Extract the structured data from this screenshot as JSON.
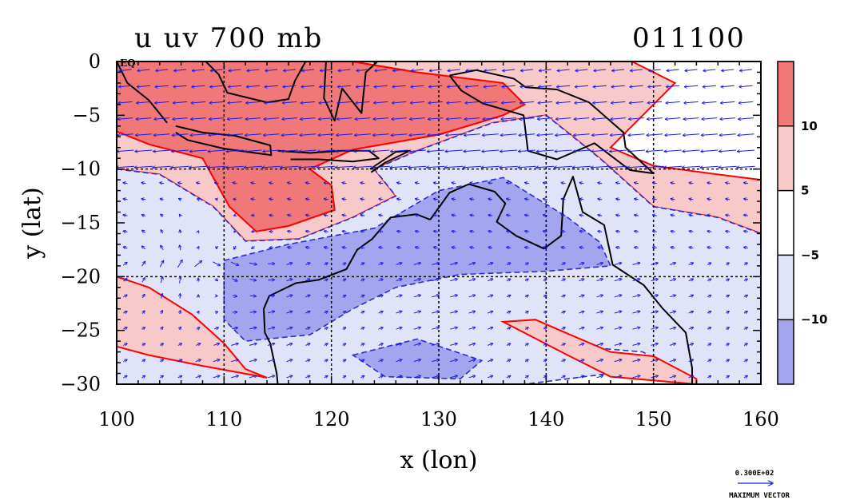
{
  "chart_data": {
    "type": "contour",
    "title": "u uv 700 mb",
    "date_label": "011100",
    "xlabel": "x (lon)",
    "ylabel": "y (lat)",
    "xlim": [
      100,
      160
    ],
    "ylim": [
      -30,
      0
    ],
    "x_ticks": [
      "100",
      "110",
      "120",
      "130",
      "140",
      "150",
      "160"
    ],
    "y_ticks": [
      "0",
      "−5",
      "−10",
      "−15",
      "−20",
      "−25",
      "−30"
    ],
    "eq_label": "EQ",
    "colorbar": {
      "levels": [
        "10",
        "5",
        "−5",
        "−10"
      ],
      "colors": [
        "#f07878",
        "#f7c9c9",
        "#ffffff",
        "#e1e3f8",
        "#a3a6ee"
      ]
    },
    "vector_legend": {
      "value": "0.300E+02",
      "label": "MAXIMUM VECTOR"
    },
    "colors": {
      "strong_positive": "#f07878",
      "weak_positive": "#f7c9c9",
      "weak_negative": "#e1e3f8",
      "strong_negative": "#a3a6ee",
      "positive_contour": "#ff0000",
      "negative_contour": "#2b2bd6",
      "vectors": "#1a1ae6",
      "coastline": "#000000"
    },
    "regions": [
      {
        "level": "strong_positive",
        "points": [
          [
            100,
            0
          ],
          [
            122,
            0
          ],
          [
            128,
            -1
          ],
          [
            136,
            -2
          ],
          [
            138,
            -4
          ],
          [
            136,
            -5
          ],
          [
            130,
            -6.8
          ],
          [
            122,
            -8.2
          ],
          [
            118,
            -10
          ],
          [
            120,
            -11.5
          ],
          [
            120.3,
            -13.8
          ],
          [
            116,
            -15.3
          ],
          [
            113,
            -15.8
          ],
          [
            110.5,
            -13.5
          ],
          [
            108,
            -9
          ],
          [
            103,
            -7.7
          ],
          [
            100,
            -6.5
          ]
        ]
      },
      {
        "level": "weak_positive",
        "points": [
          [
            100,
            -6.5
          ],
          [
            103,
            -7.7
          ],
          [
            108,
            -9
          ],
          [
            110.5,
            -13.5
          ],
          [
            113,
            -15.8
          ],
          [
            116,
            -15.3
          ],
          [
            120.3,
            -13.8
          ],
          [
            120,
            -11.5
          ],
          [
            118,
            -10
          ],
          [
            122,
            -8.2
          ],
          [
            130,
            -6.8
          ],
          [
            136,
            -5
          ],
          [
            138,
            -4
          ],
          [
            136,
            -2
          ],
          [
            128,
            -1
          ],
          [
            122,
            0
          ],
          [
            148,
            0
          ],
          [
            152,
            -2
          ],
          [
            149,
            -5
          ],
          [
            146,
            -8
          ],
          [
            150,
            -9.7
          ],
          [
            156,
            -10.5
          ],
          [
            160,
            -11
          ],
          [
            160,
            -16
          ],
          [
            156,
            -14.5
          ],
          [
            150,
            -13.5
          ],
          [
            145,
            -9
          ],
          [
            140,
            -5
          ],
          [
            135,
            -5.7
          ],
          [
            128,
            -8.3
          ],
          [
            124,
            -10
          ],
          [
            126,
            -12.5
          ],
          [
            122,
            -14.5
          ],
          [
            117,
            -16.5
          ],
          [
            112,
            -16.7
          ],
          [
            109,
            -13.5
          ],
          [
            104,
            -10.5
          ],
          [
            100,
            -10
          ]
        ]
      },
      {
        "level": "weak_negative",
        "points": [
          [
            100,
            -10
          ],
          [
            104,
            -10.5
          ],
          [
            109,
            -13.5
          ],
          [
            112,
            -16.7
          ],
          [
            117,
            -16.5
          ],
          [
            122,
            -14.5
          ],
          [
            126,
            -12.5
          ],
          [
            124,
            -10
          ],
          [
            128,
            -8.3
          ],
          [
            135,
            -5.7
          ],
          [
            140,
            -5
          ],
          [
            145,
            -9
          ],
          [
            150,
            -13.5
          ],
          [
            156,
            -14.5
          ],
          [
            160,
            -16
          ],
          [
            160,
            -30
          ],
          [
            154,
            -30
          ],
          [
            149,
            -27
          ],
          [
            143,
            -26.5
          ],
          [
            139,
            -24.8
          ],
          [
            136,
            -24.2
          ],
          [
            142,
            -27
          ],
          [
            146,
            -29
          ],
          [
            138,
            -30
          ],
          [
            100,
            -30
          ]
        ]
      },
      {
        "level": "strong_negative",
        "points": [
          [
            110,
            -18.5
          ],
          [
            116,
            -17
          ],
          [
            124,
            -15.5
          ],
          [
            130,
            -12
          ],
          [
            136,
            -10.8
          ],
          [
            142,
            -14.5
          ],
          [
            145,
            -16.8
          ],
          [
            146,
            -19
          ],
          [
            140,
            -19.5
          ],
          [
            132,
            -19.8
          ],
          [
            126,
            -21
          ],
          [
            122,
            -23
          ],
          [
            118,
            -25.4
          ],
          [
            112,
            -26
          ],
          [
            110,
            -24
          ]
        ]
      },
      {
        "level": "strong_negative",
        "points": [
          [
            122,
            -27.3
          ],
          [
            128,
            -25.8
          ],
          [
            134,
            -27.8
          ],
          [
            132,
            -29.5
          ],
          [
            125,
            -29.3
          ]
        ]
      },
      {
        "level": "weak_positive",
        "points": [
          [
            100,
            -20
          ],
          [
            103,
            -21
          ],
          [
            107,
            -23.5
          ],
          [
            110,
            -26.2
          ],
          [
            112,
            -28.6
          ],
          [
            114,
            -29.4
          ],
          [
            108,
            -28.3
          ],
          [
            103,
            -27.3
          ],
          [
            100,
            -26.5
          ]
        ]
      },
      {
        "level": "weak_positive",
        "points": [
          [
            136,
            -24.2
          ],
          [
            139,
            -24
          ],
          [
            142,
            -25.3
          ],
          [
            146,
            -27
          ],
          [
            150,
            -27.4
          ],
          [
            154,
            -29.5
          ],
          [
            154,
            -30
          ],
          [
            146,
            -29.3
          ],
          [
            142,
            -27.3
          ]
        ]
      }
    ],
    "coastlines": [
      [
        [
          129.2,
          -14.7
        ],
        [
          131,
          -12.2
        ],
        [
          132.8,
          -11.4
        ],
        [
          135.2,
          -12.1
        ],
        [
          136.2,
          -13.2
        ],
        [
          135.4,
          -14.9
        ],
        [
          137.2,
          -16.2
        ],
        [
          139.8,
          -17.4
        ],
        [
          141.4,
          -16.2
        ],
        [
          141.6,
          -12.8
        ],
        [
          142.5,
          -10.7
        ],
        [
          143.4,
          -14
        ],
        [
          145.4,
          -15.2
        ],
        [
          146.2,
          -18.9
        ],
        [
          149.1,
          -20.8
        ],
        [
          150.8,
          -22.9
        ],
        [
          153,
          -25.2
        ],
        [
          153.6,
          -28.5
        ],
        [
          153.6,
          -30
        ]
      ],
      [
        [
          115,
          -30
        ],
        [
          114.9,
          -29
        ],
        [
          114.3,
          -26.2
        ],
        [
          113.8,
          -25.2
        ],
        [
          113.7,
          -23
        ],
        [
          114.2,
          -21.8
        ],
        [
          116.7,
          -20.6
        ],
        [
          118.8,
          -20.3
        ],
        [
          121.4,
          -19.3
        ],
        [
          122.4,
          -17.5
        ],
        [
          123.8,
          -16.5
        ],
        [
          125.5,
          -14.5
        ],
        [
          127.9,
          -14.2
        ],
        [
          129.2,
          -14.7
        ]
      ],
      [
        [
          100,
          0
        ],
        [
          101,
          -2
        ],
        [
          103,
          -3.6
        ],
        [
          104.7,
          -5.7
        ]
      ],
      [
        [
          105.5,
          -6
        ],
        [
          108,
          -6.6
        ],
        [
          111,
          -6.9
        ],
        [
          114.3,
          -7.8
        ],
        [
          114.4,
          -8.7
        ],
        [
          110,
          -8.1
        ],
        [
          106.6,
          -7.3
        ],
        [
          105.5,
          -6.6
        ]
      ],
      [
        [
          115,
          -8.3
        ],
        [
          118,
          -8.5
        ],
        [
          121,
          -8.3
        ],
        [
          123.5,
          -8.3
        ],
        [
          124.4,
          -9
        ],
        [
          122,
          -9.3
        ],
        [
          118.8,
          -9.1
        ],
        [
          116.2,
          -9.1
        ]
      ],
      [
        [
          123.6,
          -10
        ],
        [
          126,
          -8.4
        ],
        [
          127.3,
          -8.3
        ],
        [
          125,
          -9.4
        ],
        [
          123.7,
          -10.3
        ]
      ],
      [
        [
          108.3,
          0
        ],
        [
          109.5,
          -1.2
        ],
        [
          110.3,
          -2.9
        ],
        [
          114,
          -3.8
        ],
        [
          116,
          -3.5
        ],
        [
          116.6,
          -1.8
        ],
        [
          117.6,
          0
        ]
      ],
      [
        [
          119.5,
          0
        ],
        [
          119.3,
          -3.4
        ],
        [
          120.3,
          -5.5
        ],
        [
          121,
          -2.5
        ],
        [
          122.8,
          -4.8
        ],
        [
          123.2,
          -1
        ],
        [
          124.3,
          0
        ]
      ],
      [
        [
          131,
          -1.3
        ],
        [
          133.5,
          -0.8
        ],
        [
          137,
          -1.6
        ],
        [
          138.1,
          -2.4
        ],
        [
          141,
          -2.6
        ],
        [
          144,
          -3.8
        ],
        [
          147.2,
          -6.6
        ],
        [
          147.4,
          -8
        ],
        [
          150,
          -10.4
        ],
        [
          147.8,
          -10.1
        ],
        [
          144.5,
          -7.6
        ],
        [
          141,
          -9.1
        ],
        [
          138.3,
          -8.3
        ],
        [
          137.9,
          -5
        ],
        [
          134.1,
          -3.9
        ],
        [
          132.1,
          -2.7
        ],
        [
          131,
          -1.3
        ]
      ]
    ],
    "vector_field_description": "wind vectors on a regular lon/lat grid"
  }
}
